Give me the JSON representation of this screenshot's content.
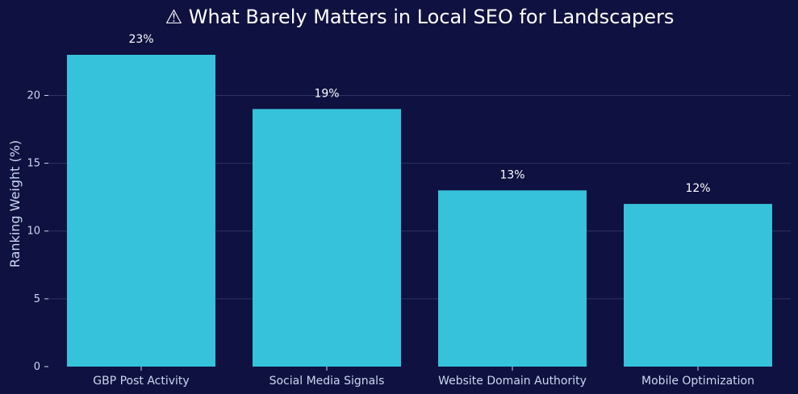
{
  "chart_data": {
    "type": "bar",
    "title": "⚠ What Barely Matters in Local SEO for Landscapers",
    "xlabel": "",
    "ylabel": "Ranking Weight (%)",
    "categories": [
      "GBP Post Activity",
      "Social Media Signals",
      "Website Domain Authority",
      "Mobile Optimization"
    ],
    "values": [
      23,
      19,
      13,
      12
    ],
    "data_labels": [
      "23%",
      "19%",
      "13%",
      "12%"
    ],
    "ylim": [
      0,
      23
    ],
    "yticks": [
      0,
      5,
      10,
      15,
      20
    ],
    "grid": true,
    "legend": "none"
  },
  "colors": {
    "background": "#0f1140",
    "bar": "#35c2da",
    "grid": "#2f3263",
    "title": "#ffffff",
    "tick_label": "#c9d8f0",
    "axis_label": "#c9d8f0",
    "data_label": "#ffffff"
  }
}
